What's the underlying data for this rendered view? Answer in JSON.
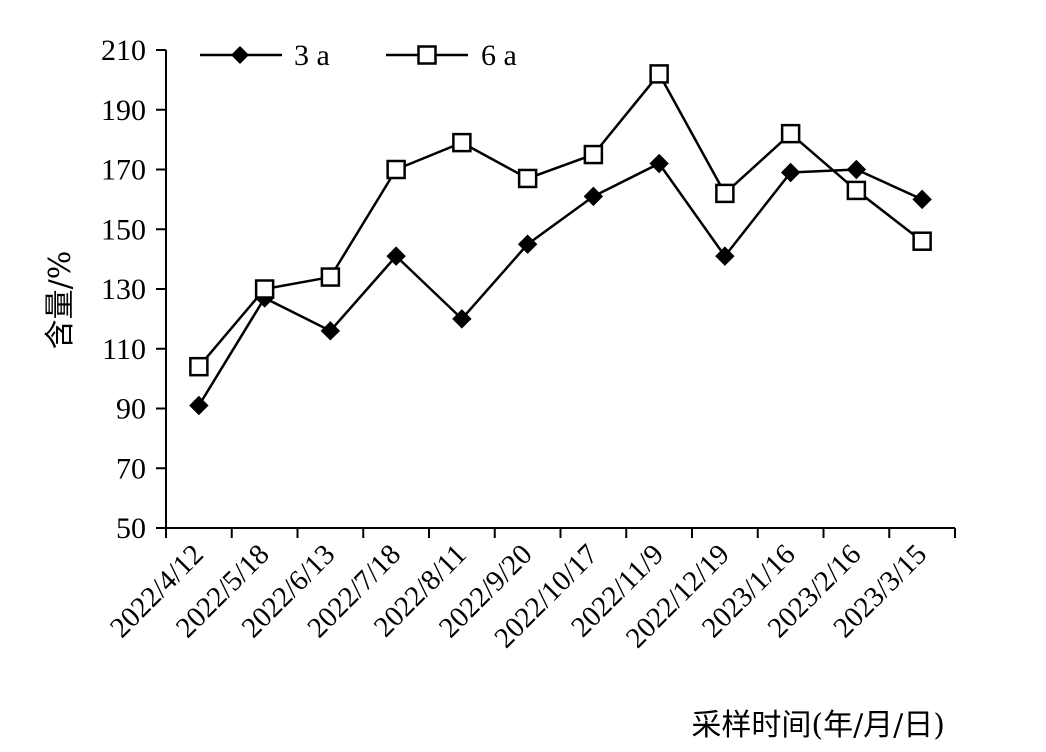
{
  "chart_data": {
    "type": "line",
    "title": "",
    "xlabel": "采样时间(年/月/日)",
    "ylabel": "含量/%",
    "ylim": [
      50,
      210
    ],
    "yticks": [
      50,
      70,
      90,
      110,
      130,
      150,
      170,
      190,
      210
    ],
    "categories": [
      "2022/4/12",
      "2022/5/18",
      "2022/6/13",
      "2022/7/18",
      "2022/8/11",
      "2022/9/20",
      "2022/10/17",
      "2022/11/9",
      "2022/12/19",
      "2023/1/16",
      "2023/2/16",
      "2023/3/15"
    ],
    "series": [
      {
        "name": "3 a",
        "marker": "filled-diamond",
        "color": "#000000",
        "values": [
          91,
          127,
          116,
          141,
          120,
          145,
          161,
          172,
          141,
          169,
          170,
          160
        ]
      },
      {
        "name": "6 a",
        "marker": "open-square",
        "color": "#000000",
        "values": [
          104,
          130,
          134,
          170,
          179,
          167,
          175,
          202,
          162,
          182,
          163,
          146
        ]
      }
    ],
    "grid": false,
    "legend_position": "top"
  }
}
